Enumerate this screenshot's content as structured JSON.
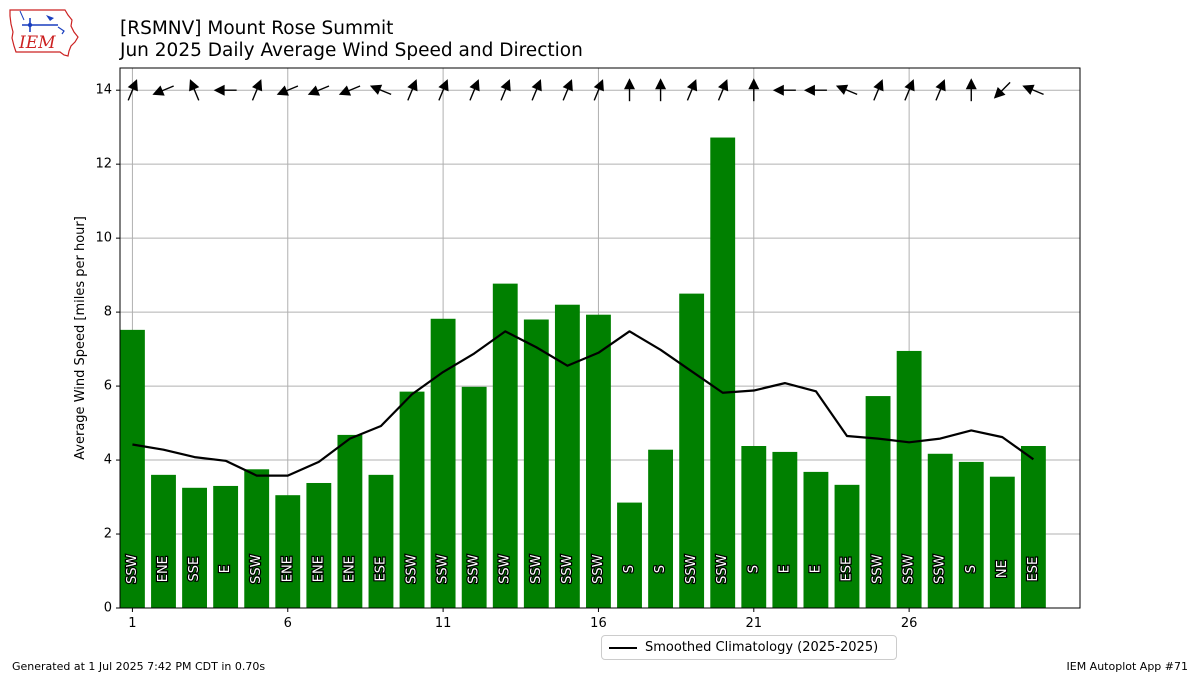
{
  "header": {
    "title_line1": "[RSMNV] Mount Rose Summit",
    "title_line2": "Jun 2025 Daily Average Wind Speed and Direction",
    "logo_text": "IEM"
  },
  "footer": {
    "generated": "Generated at 1 Jul 2025 7:42 PM CDT in 0.70s",
    "app": "IEM Autoplot App #71"
  },
  "legend": {
    "label": "Smoothed Climatology (2025-2025)"
  },
  "colors": {
    "bar": "#008000",
    "line": "#000000",
    "grid": "#b0b0b0",
    "logo_red": "#cc2222",
    "logo_blue": "#1a3fbf"
  },
  "chart_data": {
    "type": "bar",
    "xlabel": "",
    "ylabel": "Average Wind Speed [miles per hour]",
    "ylim": [
      0,
      14.6
    ],
    "xlim": [
      0.6,
      31.5
    ],
    "yticks": [
      0,
      2,
      4,
      6,
      8,
      10,
      12,
      14
    ],
    "xticks": [
      1,
      6,
      11,
      16,
      21,
      26
    ],
    "grid": true,
    "legend_position": "below-center",
    "days": [
      1,
      2,
      3,
      4,
      5,
      6,
      7,
      8,
      9,
      10,
      11,
      12,
      13,
      14,
      15,
      16,
      17,
      18,
      19,
      20,
      21,
      22,
      23,
      24,
      25,
      26,
      27,
      28,
      29,
      30
    ],
    "series": [
      {
        "kind": "bar",
        "values": [
          7.52,
          3.6,
          3.25,
          3.3,
          3.75,
          3.05,
          3.38,
          4.68,
          3.6,
          5.85,
          7.82,
          5.98,
          8.77,
          7.8,
          8.2,
          7.93,
          2.85,
          4.28,
          8.5,
          12.72,
          4.38,
          4.22,
          3.68,
          3.33,
          5.73,
          6.95,
          4.17,
          3.95,
          3.55,
          4.38
        ]
      },
      {
        "kind": "line",
        "name": "Smoothed Climatology (2025-2025)",
        "values": [
          4.42,
          4.28,
          4.08,
          3.98,
          3.58,
          3.58,
          3.95,
          4.58,
          4.92,
          5.78,
          6.38,
          6.88,
          7.48,
          7.05,
          6.55,
          6.9,
          7.48,
          6.98,
          6.4,
          5.82,
          5.88,
          6.08,
          5.86,
          4.65,
          4.58,
          4.48,
          4.58,
          4.8,
          4.62,
          4.02
        ]
      }
    ],
    "direction_labels": [
      "SSW",
      "ENE",
      "SSE",
      "E",
      "SSW",
      "ENE",
      "ENE",
      "ENE",
      "ESE",
      "SSW",
      "SSW",
      "SSW",
      "SSW",
      "SSW",
      "SSW",
      "SSW",
      "S",
      "S",
      "SSW",
      "SSW",
      "S",
      "E",
      "E",
      "ESE",
      "SSW",
      "SSW",
      "SSW",
      "S",
      "NE",
      "ESE"
    ],
    "direction_degrees": [
      202.5,
      67.5,
      157.5,
      90,
      202.5,
      67.5,
      67.5,
      67.5,
      112.5,
      202.5,
      202.5,
      202.5,
      202.5,
      202.5,
      202.5,
      202.5,
      180,
      180,
      202.5,
      202.5,
      180,
      90,
      90,
      112.5,
      202.5,
      202.5,
      202.5,
      180,
      45,
      112.5
    ],
    "arrow_level": 14
  }
}
